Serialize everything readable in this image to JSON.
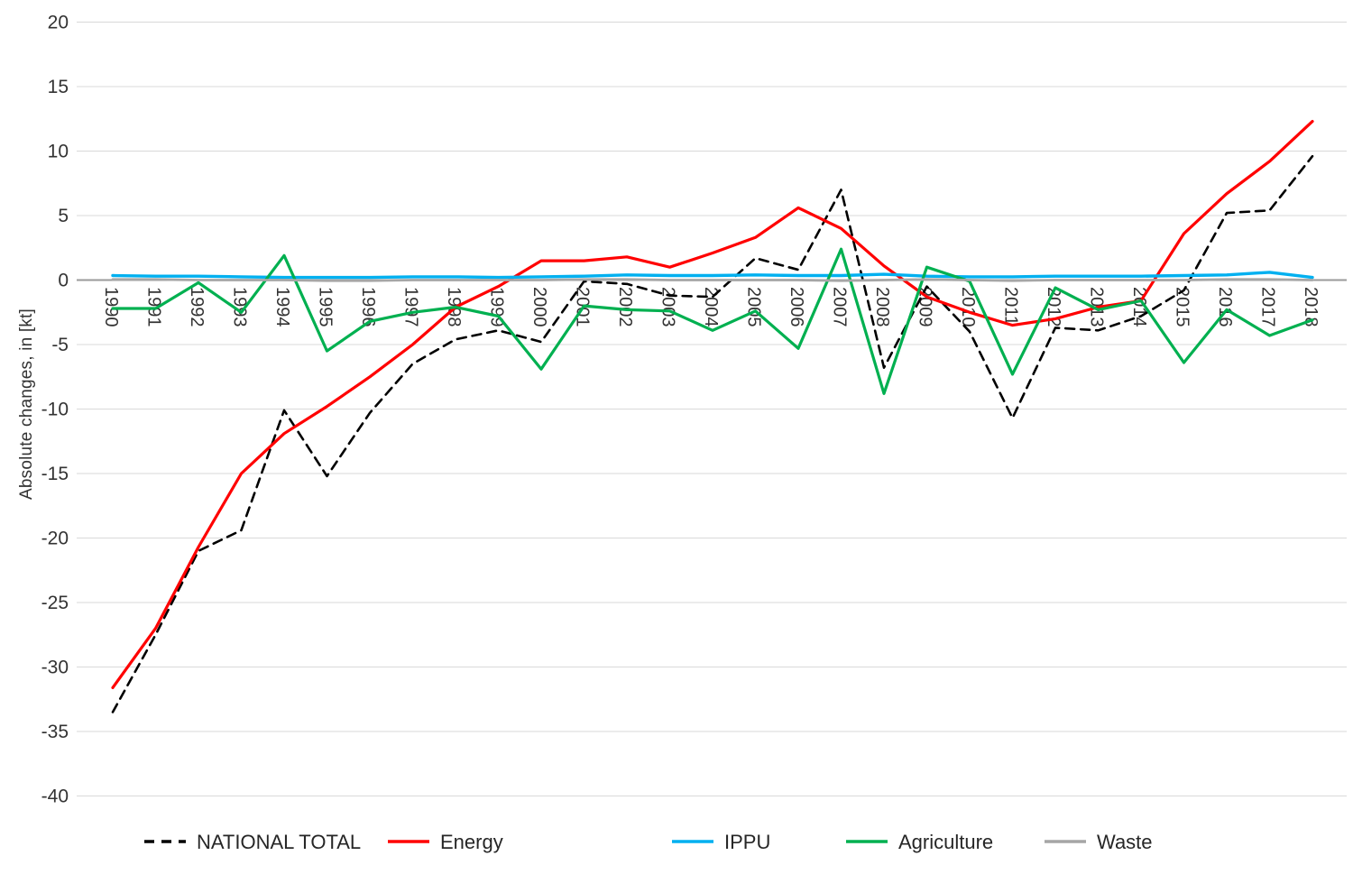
{
  "chart_data": {
    "type": "line",
    "title": "",
    "ylabel": "Absolute changes, in [kt]",
    "xlabel": "",
    "ylim": [
      -40,
      20
    ],
    "ytick_step": 5,
    "yticks": [
      20,
      15,
      10,
      5,
      0,
      -5,
      -10,
      -15,
      -20,
      -25,
      -30,
      -35,
      -40
    ],
    "grid": "horizontal",
    "gridline_color": "#D9D9D9",
    "zero_axis_color": "#9A9A9A",
    "tick_label_color": "#333333",
    "legend_position": "bottom",
    "x": [
      1990,
      1991,
      1992,
      1993,
      1994,
      1995,
      1996,
      1997,
      1998,
      1999,
      2000,
      2001,
      2002,
      2003,
      2004,
      2005,
      2006,
      2007,
      2008,
      2009,
      2010,
      2011,
      2012,
      2013,
      2014,
      2015,
      2016,
      2017,
      2018
    ],
    "series": [
      {
        "name": "NATIONAL TOTAL",
        "color": "#000000",
        "style": "dashed",
        "values": [
          -33.5,
          -27.5,
          -21.0,
          -19.4,
          -10.1,
          -15.2,
          -10.3,
          -6.5,
          -4.6,
          -3.9,
          -4.8,
          -0.1,
          -0.3,
          -1.2,
          -1.3,
          1.7,
          0.8,
          7.0,
          -6.8,
          -0.5,
          -4.0,
          -10.7,
          -3.7,
          -3.9,
          -2.8,
          -0.8,
          5.2,
          5.4,
          9.6
        ]
      },
      {
        "name": "Energy",
        "color": "#FF0000",
        "style": "solid",
        "values": [
          -31.6,
          -27.0,
          -20.7,
          -15.0,
          -11.9,
          -9.8,
          -7.5,
          -5.0,
          -2.1,
          -0.5,
          1.5,
          1.5,
          1.8,
          1.0,
          2.1,
          3.3,
          5.6,
          4.0,
          1.1,
          -1.3,
          -2.5,
          -3.5,
          -3.0,
          -2.1,
          -1.6,
          3.6,
          6.7,
          9.2,
          12.3
        ]
      },
      {
        "name": "IPPU",
        "color": "#00B0F0",
        "style": "solid",
        "values": [
          0.35,
          0.3,
          0.3,
          0.25,
          0.2,
          0.2,
          0.2,
          0.25,
          0.25,
          0.2,
          0.25,
          0.3,
          0.4,
          0.35,
          0.35,
          0.4,
          0.35,
          0.35,
          0.45,
          0.3,
          0.25,
          0.25,
          0.3,
          0.3,
          0.3,
          0.35,
          0.4,
          0.6,
          0.2
        ]
      },
      {
        "name": "Agriculture",
        "color": "#00B050",
        "style": "solid",
        "values": [
          -2.2,
          -2.2,
          -0.2,
          -2.5,
          1.9,
          -5.5,
          -3.2,
          -2.5,
          -2.1,
          -2.8,
          -6.9,
          -2.0,
          -2.3,
          -2.4,
          -3.9,
          -2.4,
          -5.3,
          2.4,
          -8.8,
          1.0,
          -0.1,
          -7.3,
          -0.6,
          -2.3,
          -1.6,
          -6.4,
          -2.3,
          -4.3,
          -3.1
        ]
      },
      {
        "name": "Waste",
        "color": "#A6A6A6",
        "style": "solid",
        "values": [
          0.05,
          0.05,
          0,
          0,
          0,
          -0.05,
          -0.05,
          0,
          0,
          0,
          0,
          0.05,
          0.05,
          0,
          0,
          0,
          0,
          -0.05,
          0,
          0.05,
          0,
          -0.05,
          0,
          0,
          0,
          0,
          0.05,
          0.05,
          0
        ]
      }
    ]
  }
}
